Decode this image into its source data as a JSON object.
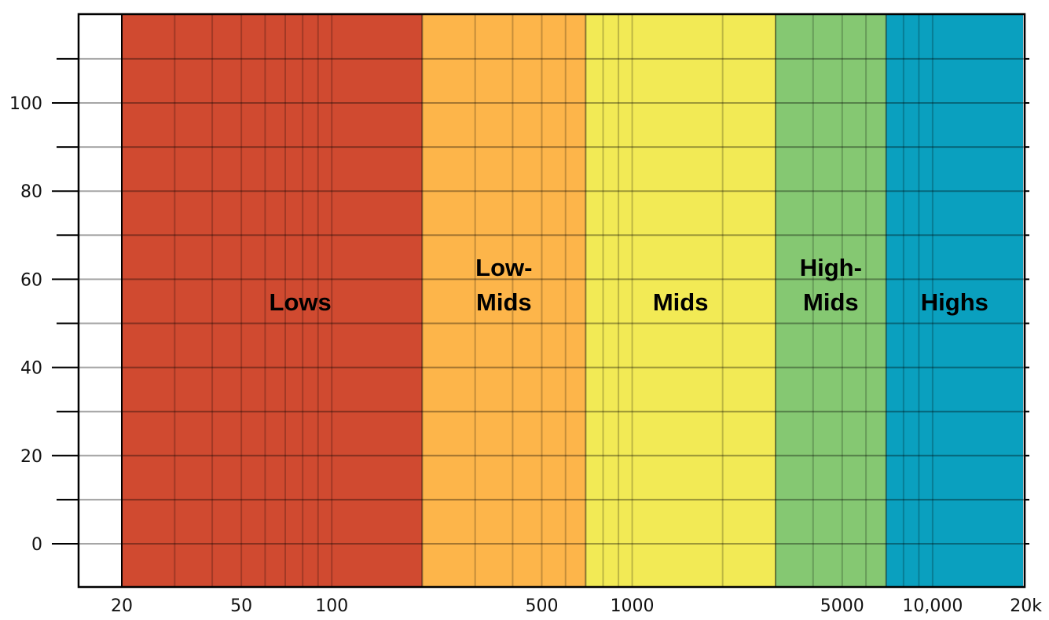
{
  "chart_data": {
    "type": "area",
    "title": "",
    "xlabel": "",
    "ylabel": "",
    "x_scale": "log",
    "xlim": [
      15,
      20000
    ],
    "ylim": [
      -10,
      120
    ],
    "grid": true,
    "bands": [
      {
        "name": "Lows",
        "label_lines": [
          "Lows"
        ],
        "from": 20,
        "to": 200,
        "color": "#d04a30"
      },
      {
        "name": "Low-Mids",
        "label_lines": [
          "Low-",
          "Mids"
        ],
        "from": 200,
        "to": 700,
        "color": "#fdb54a"
      },
      {
        "name": "Mids",
        "label_lines": [
          "Mids"
        ],
        "from": 700,
        "to": 3000,
        "color": "#f2ea55"
      },
      {
        "name": "High-Mids",
        "label_lines": [
          "High-",
          "Mids"
        ],
        "from": 3000,
        "to": 7000,
        "color": "#85c872"
      },
      {
        "name": "Highs",
        "label_lines": [
          "Highs"
        ],
        "from": 7000,
        "to": 20000,
        "color": "#0aa0bf"
      }
    ],
    "y_ticks": [
      {
        "value": 0,
        "label": "0"
      },
      {
        "value": 20,
        "label": "20"
      },
      {
        "value": 40,
        "label": "40"
      },
      {
        "value": 60,
        "label": "60"
      },
      {
        "value": 80,
        "label": "80"
      },
      {
        "value": 100,
        "label": "100"
      }
    ],
    "x_ticks": [
      {
        "value": 20,
        "label": "20"
      },
      {
        "value": 50,
        "label": "50"
      },
      {
        "value": 100,
        "label": "100"
      },
      {
        "value": 500,
        "label": "500"
      },
      {
        "value": 1000,
        "label": "1000"
      },
      {
        "value": 5000,
        "label": "5000"
      },
      {
        "value": 10000,
        "label": "10,000"
      },
      {
        "value": 20000,
        "label": "20k"
      }
    ]
  }
}
